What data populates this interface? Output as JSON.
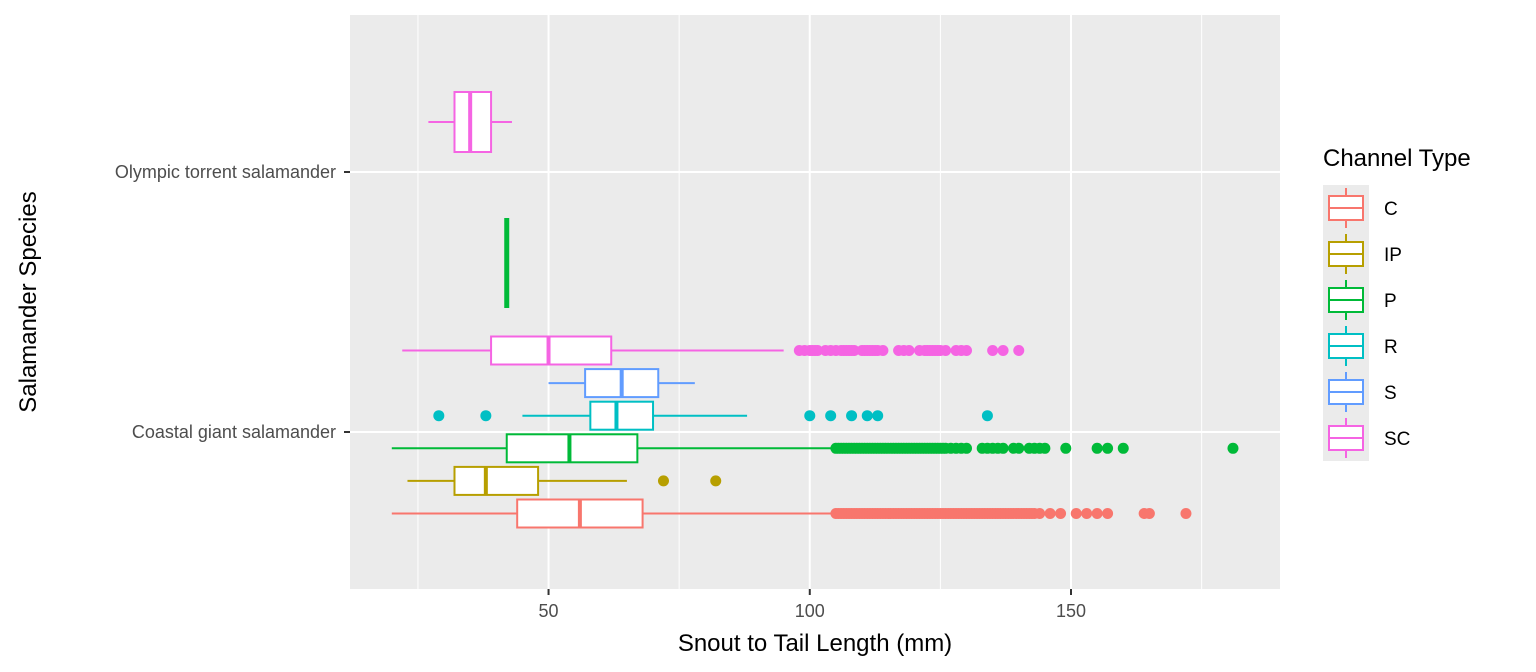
{
  "chart_data": {
    "type": "boxplot",
    "orientation": "horizontal",
    "title": "",
    "xlabel": "Snout to Tail Length (mm)",
    "ylabel": "Salamander Species",
    "xlim": [
      12,
      190
    ],
    "x_ticks": [
      50,
      100,
      150
    ],
    "grid": true,
    "legend": {
      "title": "Channel Type",
      "position": "right",
      "entries": [
        "C",
        "IP",
        "P",
        "R",
        "S",
        "SC"
      ]
    },
    "colors": {
      "C": "#F8766D",
      "IP": "#B79F00",
      "P": "#00BA38",
      "R": "#00BFC4",
      "S": "#619CFF",
      "SC": "#F564E3",
      "panel": "#EBEBEB",
      "grid": "#FFFFFF"
    },
    "categories": [
      "Coastal giant salamander",
      "Olympic torrent salamander"
    ],
    "series": [
      {
        "category": "Coastal giant salamander",
        "group": "C",
        "whisker_low": 20,
        "q1": 44,
        "median": 56,
        "q3": 68,
        "whisker_high": 104,
        "outliers": [
          105,
          105.5,
          106,
          106.5,
          107,
          107.5,
          108,
          108.5,
          109,
          109.5,
          110,
          110.5,
          111,
          111.5,
          112,
          112.5,
          113,
          113.5,
          114,
          114.5,
          115,
          115.5,
          116,
          116.5,
          117,
          117.5,
          118,
          118.5,
          119,
          119.5,
          120,
          120.5,
          121,
          121.5,
          122,
          122.5,
          123,
          123.5,
          124,
          124.5,
          125,
          125.5,
          126,
          126.5,
          127,
          127.5,
          128,
          128.5,
          129,
          129.5,
          130,
          130.5,
          131,
          131.5,
          132,
          132.5,
          133,
          133.5,
          134,
          134.5,
          135,
          135.5,
          136,
          136.5,
          137,
          137.5,
          138,
          138.5,
          139,
          139.5,
          140,
          140.5,
          141,
          141.5,
          142,
          142.5,
          143,
          144,
          146,
          148,
          151,
          153,
          155,
          157,
          164,
          165,
          172
        ]
      },
      {
        "category": "Coastal giant salamander",
        "group": "IP",
        "whisker_low": 23,
        "q1": 32,
        "median": 38,
        "q3": 48,
        "whisker_high": 65,
        "outliers": [
          72,
          82
        ]
      },
      {
        "category": "Coastal giant salamander",
        "group": "P",
        "whisker_low": 20,
        "q1": 42,
        "median": 54,
        "q3": 67,
        "whisker_high": 104,
        "outliers": [
          105,
          105.5,
          106,
          106.5,
          107,
          107.5,
          108,
          108.5,
          109,
          109.5,
          110,
          110.5,
          111,
          111.5,
          112,
          112.5,
          113,
          113.5,
          114,
          114.5,
          115,
          115.5,
          116,
          116.5,
          117,
          117.5,
          118,
          118.5,
          119,
          119.5,
          120,
          120.5,
          121,
          121.5,
          122,
          122.5,
          123,
          123.5,
          124,
          124.5,
          125,
          125.5,
          126,
          127,
          128,
          129,
          130,
          133,
          134,
          135,
          136,
          137,
          139,
          140,
          142,
          143,
          144,
          145,
          149,
          155,
          157,
          160,
          181
        ]
      },
      {
        "category": "Coastal giant salamander",
        "group": "R",
        "whisker_low": 45,
        "q1": 58,
        "median": 63,
        "q3": 70,
        "whisker_high": 88,
        "outliers": [
          29,
          38,
          100,
          104,
          108,
          111,
          113,
          134
        ]
      },
      {
        "category": "Coastal giant salamander",
        "group": "S",
        "whisker_low": 50,
        "q1": 57,
        "median": 64,
        "q3": 71,
        "whisker_high": 78,
        "outliers": []
      },
      {
        "category": "Coastal giant salamander",
        "group": "SC",
        "whisker_low": 22,
        "q1": 39,
        "median": 50,
        "q3": 62,
        "whisker_high": 95,
        "outliers": [
          98,
          99,
          100,
          100.5,
          101,
          101.5,
          103,
          104,
          105,
          106,
          106.5,
          107,
          107.5,
          108,
          108.5,
          110,
          110.5,
          111,
          111.5,
          112,
          112.5,
          113,
          114,
          117,
          118,
          119,
          121,
          122,
          122.5,
          123,
          123.5,
          124,
          124.5,
          125,
          126,
          128,
          129,
          130,
          135,
          137,
          140
        ]
      },
      {
        "category": "Olympic torrent salamander",
        "group": "P",
        "whisker_low": 42,
        "q1": 42,
        "median": 42,
        "q3": 42,
        "whisker_high": 42,
        "outliers": []
      },
      {
        "category": "Olympic torrent salamander",
        "group": "SC",
        "whisker_low": 27,
        "q1": 32,
        "median": 35,
        "q3": 39,
        "whisker_high": 43,
        "outliers": []
      }
    ]
  }
}
